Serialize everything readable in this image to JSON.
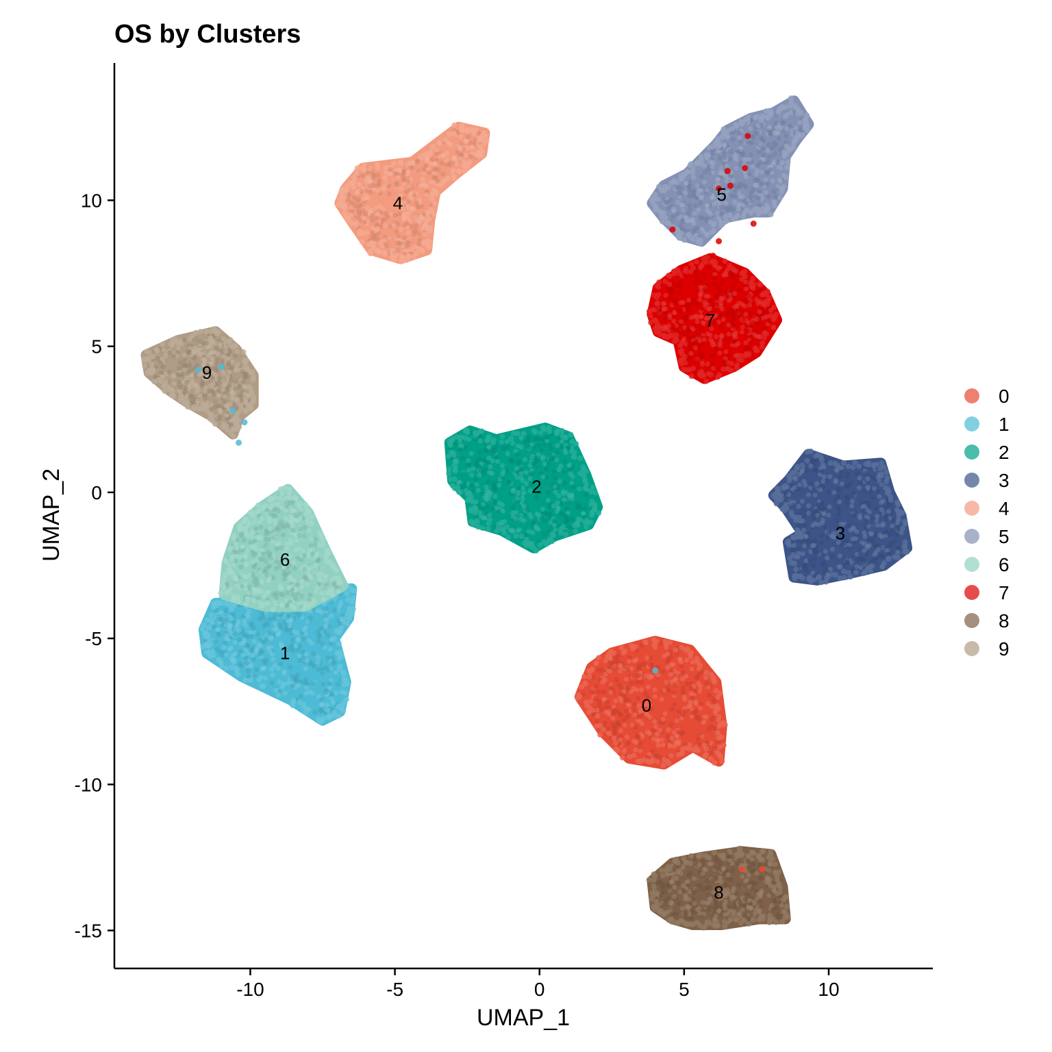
{
  "chart_data": {
    "type": "scatter",
    "title": "OS by Clusters",
    "xlabel": "UMAP_1",
    "ylabel": "UMAP_2",
    "xlim": [
      -14.7,
      13.6
    ],
    "ylim": [
      -16.3,
      14.7
    ],
    "xticks": [
      -10,
      -5,
      0,
      5,
      10
    ],
    "yticks": [
      -15,
      -10,
      -5,
      0,
      5,
      10
    ],
    "xtick_labels": [
      "-10",
      "-5",
      "0",
      "5",
      "10"
    ],
    "ytick_labels": [
      "-15",
      "-10",
      "-5",
      "0",
      "5",
      "10"
    ],
    "grid": false,
    "legend_position": "right",
    "clusters": [
      {
        "name": "0",
        "color": "#E64B35",
        "label_pos": [
          3.7,
          -7.3
        ],
        "outline": [
          [
            2.5,
            -5.5
          ],
          [
            4,
            -5.1
          ],
          [
            5.2,
            -5.4
          ],
          [
            6.1,
            -6.5
          ],
          [
            6.3,
            -8
          ],
          [
            6.2,
            -9.2
          ],
          [
            5.3,
            -8.7
          ],
          [
            4.3,
            -9.3
          ],
          [
            3.1,
            -9.1
          ],
          [
            2.2,
            -8.2
          ],
          [
            1.4,
            -7
          ],
          [
            1.8,
            -6
          ]
        ],
        "stray": [
          [
            4,
            -6.1
          ]
        ],
        "stray_color": "#4DBBD5"
      },
      {
        "name": "1",
        "color": "#4DBBD5",
        "label_pos": [
          -8.8,
          -5.5
        ],
        "outline": [
          [
            -11.2,
            -3.8
          ],
          [
            -9.5,
            -3.7
          ],
          [
            -8,
            -3.8
          ],
          [
            -6.5,
            -3.3
          ],
          [
            -6.6,
            -4.3
          ],
          [
            -7.1,
            -5
          ],
          [
            -6.7,
            -6.5
          ],
          [
            -6.9,
            -7.5
          ],
          [
            -7.5,
            -7.8
          ],
          [
            -8.6,
            -7.1
          ],
          [
            -10.3,
            -6.3
          ],
          [
            -11.5,
            -5.5
          ],
          [
            -11.6,
            -4.7
          ]
        ]
      },
      {
        "name": "2",
        "color": "#00A087",
        "label_pos": [
          -0.1,
          0.2
        ],
        "outline": [
          [
            -3.1,
            1.7
          ],
          [
            -2.4,
            2.1
          ],
          [
            -1.5,
            1.8
          ],
          [
            0.2,
            2.2
          ],
          [
            1,
            1.9
          ],
          [
            1.6,
            0.6
          ],
          [
            2,
            -0.5
          ],
          [
            1.7,
            -1.1
          ],
          [
            0.5,
            -1.5
          ],
          [
            -0.2,
            -1.9
          ],
          [
            -1.3,
            -1.3
          ],
          [
            -2.3,
            -1
          ],
          [
            -2.4,
            -0.2
          ],
          [
            -3,
            0.4
          ]
        ]
      },
      {
        "name": "3",
        "color": "#3C5488",
        "label_pos": [
          10.4,
          -1.4
        ],
        "outline": [
          [
            8.1,
            -0.1
          ],
          [
            8.6,
            0.4
          ],
          [
            9.3,
            1.3
          ],
          [
            10.5,
            0.9
          ],
          [
            11.8,
            1
          ],
          [
            12.1,
            0
          ],
          [
            12.5,
            -0.8
          ],
          [
            12.7,
            -1.9
          ],
          [
            11.9,
            -2.5
          ],
          [
            10.6,
            -2.8
          ],
          [
            9.6,
            -3
          ],
          [
            8.8,
            -2.9
          ],
          [
            8.6,
            -1.7
          ],
          [
            9.1,
            -1.4
          ],
          [
            8.5,
            -0.5
          ]
        ]
      },
      {
        "name": "4",
        "color": "#F39B7F",
        "label_pos": [
          -4.9,
          9.9
        ],
        "outline": [
          [
            -6.7,
            10.4
          ],
          [
            -6.1,
            11.1
          ],
          [
            -4.4,
            11.3
          ],
          [
            -2.8,
            12.5
          ],
          [
            -1.9,
            12.3
          ],
          [
            -2,
            11.6
          ],
          [
            -2.9,
            10.9
          ],
          [
            -3.6,
            10.3
          ],
          [
            -3.8,
            9.3
          ],
          [
            -3.9,
            8.3
          ],
          [
            -4.8,
            8
          ],
          [
            -5.8,
            8.3
          ],
          [
            -6.5,
            9.3
          ],
          [
            -6.9,
            9.9
          ]
        ]
      },
      {
        "name": "5",
        "color": "#8491B4",
        "label_pos": [
          6.3,
          10.2
        ],
        "outline": [
          [
            3.9,
            9.9
          ],
          [
            4.3,
            10.5
          ],
          [
            5.1,
            10.9
          ],
          [
            5.5,
            11.3
          ],
          [
            6.1,
            11.9
          ],
          [
            6.5,
            12.4
          ],
          [
            7.3,
            12.8
          ],
          [
            8.1,
            13
          ],
          [
            8.8,
            13.4
          ],
          [
            9.3,
            12.6
          ],
          [
            8.9,
            12.1
          ],
          [
            8.5,
            11.5
          ],
          [
            8.4,
            10.4
          ],
          [
            7.9,
            9.6
          ],
          [
            7.4,
            9.6
          ],
          [
            6.4,
            9.4
          ],
          [
            5.6,
            8.6
          ],
          [
            4.9,
            8.8
          ],
          [
            4.3,
            9.4
          ]
        ]
      },
      {
        "name": "6",
        "color": "#91D1C2",
        "label_pos": [
          -8.8,
          -2.3
        ],
        "outline": [
          [
            -10.9,
            -3.5
          ],
          [
            -10.8,
            -2.4
          ],
          [
            -10.4,
            -1.2
          ],
          [
            -9.6,
            -0.5
          ],
          [
            -8.7,
            0.1
          ],
          [
            -8,
            -0.7
          ],
          [
            -7.4,
            -2
          ],
          [
            -6.8,
            -3.2
          ],
          [
            -8.1,
            -3.9
          ],
          [
            -9.5,
            -3.9
          ]
        ]
      },
      {
        "name": "7",
        "color": "#DC0000",
        "label_pos": [
          5.9,
          5.9
        ],
        "outline": [
          [
            3.9,
            6.1
          ],
          [
            4.1,
            7
          ],
          [
            4.9,
            7.6
          ],
          [
            5.9,
            8
          ],
          [
            7.1,
            7.5
          ],
          [
            7.8,
            6.8
          ],
          [
            8.2,
            5.9
          ],
          [
            7.5,
            4.8
          ],
          [
            6.7,
            4.3
          ],
          [
            5.7,
            3.9
          ],
          [
            5,
            4.3
          ],
          [
            4.8,
            5.2
          ],
          [
            4.1,
            5.5
          ]
        ],
        "stray": [
          [
            6.2,
            10.4
          ],
          [
            6.6,
            10.5
          ],
          [
            7.1,
            11.1
          ],
          [
            6.5,
            11
          ],
          [
            7.2,
            12.2
          ],
          [
            4.6,
            9
          ],
          [
            6.2,
            8.6
          ],
          [
            7.4,
            9.2
          ],
          [
            6,
            8.1
          ]
        ],
        "stray_color": "#DC0000"
      },
      {
        "name": "8",
        "color": "#7E6148",
        "label_pos": [
          6.2,
          -13.7
        ],
        "outline": [
          [
            3.9,
            -13.3
          ],
          [
            4.6,
            -12.7
          ],
          [
            5.6,
            -12.5
          ],
          [
            7,
            -12.3
          ],
          [
            8,
            -12.4
          ],
          [
            8.4,
            -13.5
          ],
          [
            8.5,
            -14.6
          ],
          [
            7.6,
            -14.6
          ],
          [
            6.3,
            -14.8
          ],
          [
            5.3,
            -14.8
          ],
          [
            4.6,
            -14.6
          ],
          [
            4,
            -14.2
          ]
        ],
        "stray": [
          [
            7,
            -12.9
          ],
          [
            7.7,
            -12.9
          ]
        ],
        "stray_color": "#E64B35"
      },
      {
        "name": "9",
        "color": "#B09C85",
        "label_pos": [
          -11.5,
          4.1
        ],
        "outline": [
          [
            -13.6,
            4.7
          ],
          [
            -12.5,
            5.2
          ],
          [
            -11.2,
            5.5
          ],
          [
            -10.5,
            4.9
          ],
          [
            -9.9,
            4
          ],
          [
            -9.9,
            3
          ],
          [
            -10.4,
            2.6
          ],
          [
            -10.6,
            2
          ],
          [
            -11.3,
            2.6
          ],
          [
            -12.2,
            3.1
          ],
          [
            -12.8,
            3.5
          ],
          [
            -13.5,
            4.1
          ]
        ],
        "stray": [
          [
            -10.4,
            1.7
          ],
          [
            -10.2,
            2.4
          ],
          [
            -10.6,
            2.8
          ],
          [
            -11.8,
            4.2
          ],
          [
            -11,
            4.3
          ]
        ],
        "stray_color": "#4DBBD5"
      }
    ],
    "legend": [
      {
        "label": "0",
        "color": "#E64B35"
      },
      {
        "label": "1",
        "color": "#4DBBD5"
      },
      {
        "label": "2",
        "color": "#00A087"
      },
      {
        "label": "3",
        "color": "#3C5488"
      },
      {
        "label": "4",
        "color": "#F39B7F"
      },
      {
        "label": "5",
        "color": "#8491B4"
      },
      {
        "label": "6",
        "color": "#91D1C2"
      },
      {
        "label": "7",
        "color": "#DC0000"
      },
      {
        "label": "8",
        "color": "#7E6148"
      },
      {
        "label": "9",
        "color": "#B09C85"
      }
    ]
  }
}
